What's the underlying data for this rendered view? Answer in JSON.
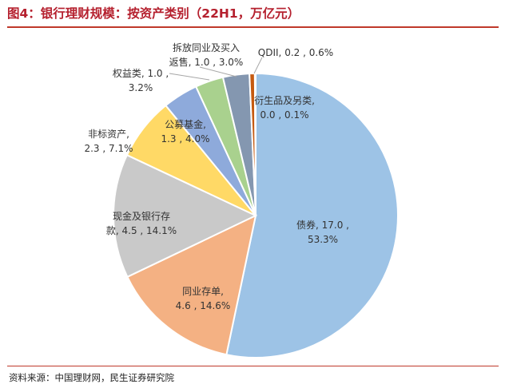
{
  "figure": {
    "title": "图4：银行理财规模：按资产类别（22H1，万亿元）",
    "source": "资料来源：中国理财网，民生证券研究院"
  },
  "chart_data": {
    "type": "pie",
    "slices": [
      {
        "name": "债券",
        "value": 17.0,
        "percent_label": "53.3%",
        "color": "#9dc3e6",
        "label_lines": [
          "债券, 17.0 ,",
          "53.3%"
        ]
      },
      {
        "name": "同业存单",
        "value": 4.6,
        "percent_label": "14.6%",
        "color": "#f4b183",
        "label_lines": [
          "同业存单,",
          "4.6 , 14.6%"
        ]
      },
      {
        "name": "现金及银行存款",
        "value": 4.5,
        "percent_label": "14.1%",
        "color": "#c9c9c9",
        "label_lines": [
          "现金及银行存",
          "款, 4.5 , 14.1%"
        ]
      },
      {
        "name": "非标资产",
        "value": 2.3,
        "percent_label": "7.1%",
        "color": "#ffd966",
        "label_lines": [
          "非标资产,",
          "2.3 , 7.1%"
        ]
      },
      {
        "name": "公募基金",
        "value": 1.3,
        "percent_label": "4.0%",
        "color": "#8eaadb",
        "label_lines": [
          "公募基金,",
          "1.3 , 4.0%"
        ]
      },
      {
        "name": "权益类",
        "value": 1.0,
        "percent_label": "3.2%",
        "color": "#a9d18e",
        "label_lines": [
          "权益类, 1.0 ,",
          "3.2%"
        ]
      },
      {
        "name": "拆放同业及买入返售",
        "value": 1.0,
        "percent_label": "3.0%",
        "color": "#8497b0",
        "label_lines": [
          "拆放同业及买入",
          "返售, 1.0 , 3.0%"
        ]
      },
      {
        "name": "QDII",
        "value": 0.2,
        "percent_label": "0.6%",
        "color": "#c55a11",
        "label_lines": [
          "QDII, 0.2 , 0.6%"
        ]
      },
      {
        "name": "衍生品及另类",
        "value": 0.0,
        "percent_label": "0.1%",
        "color": "#264478",
        "label_lines": [
          "衍生品及另类,",
          "0.0 , 0.1%"
        ]
      }
    ]
  }
}
